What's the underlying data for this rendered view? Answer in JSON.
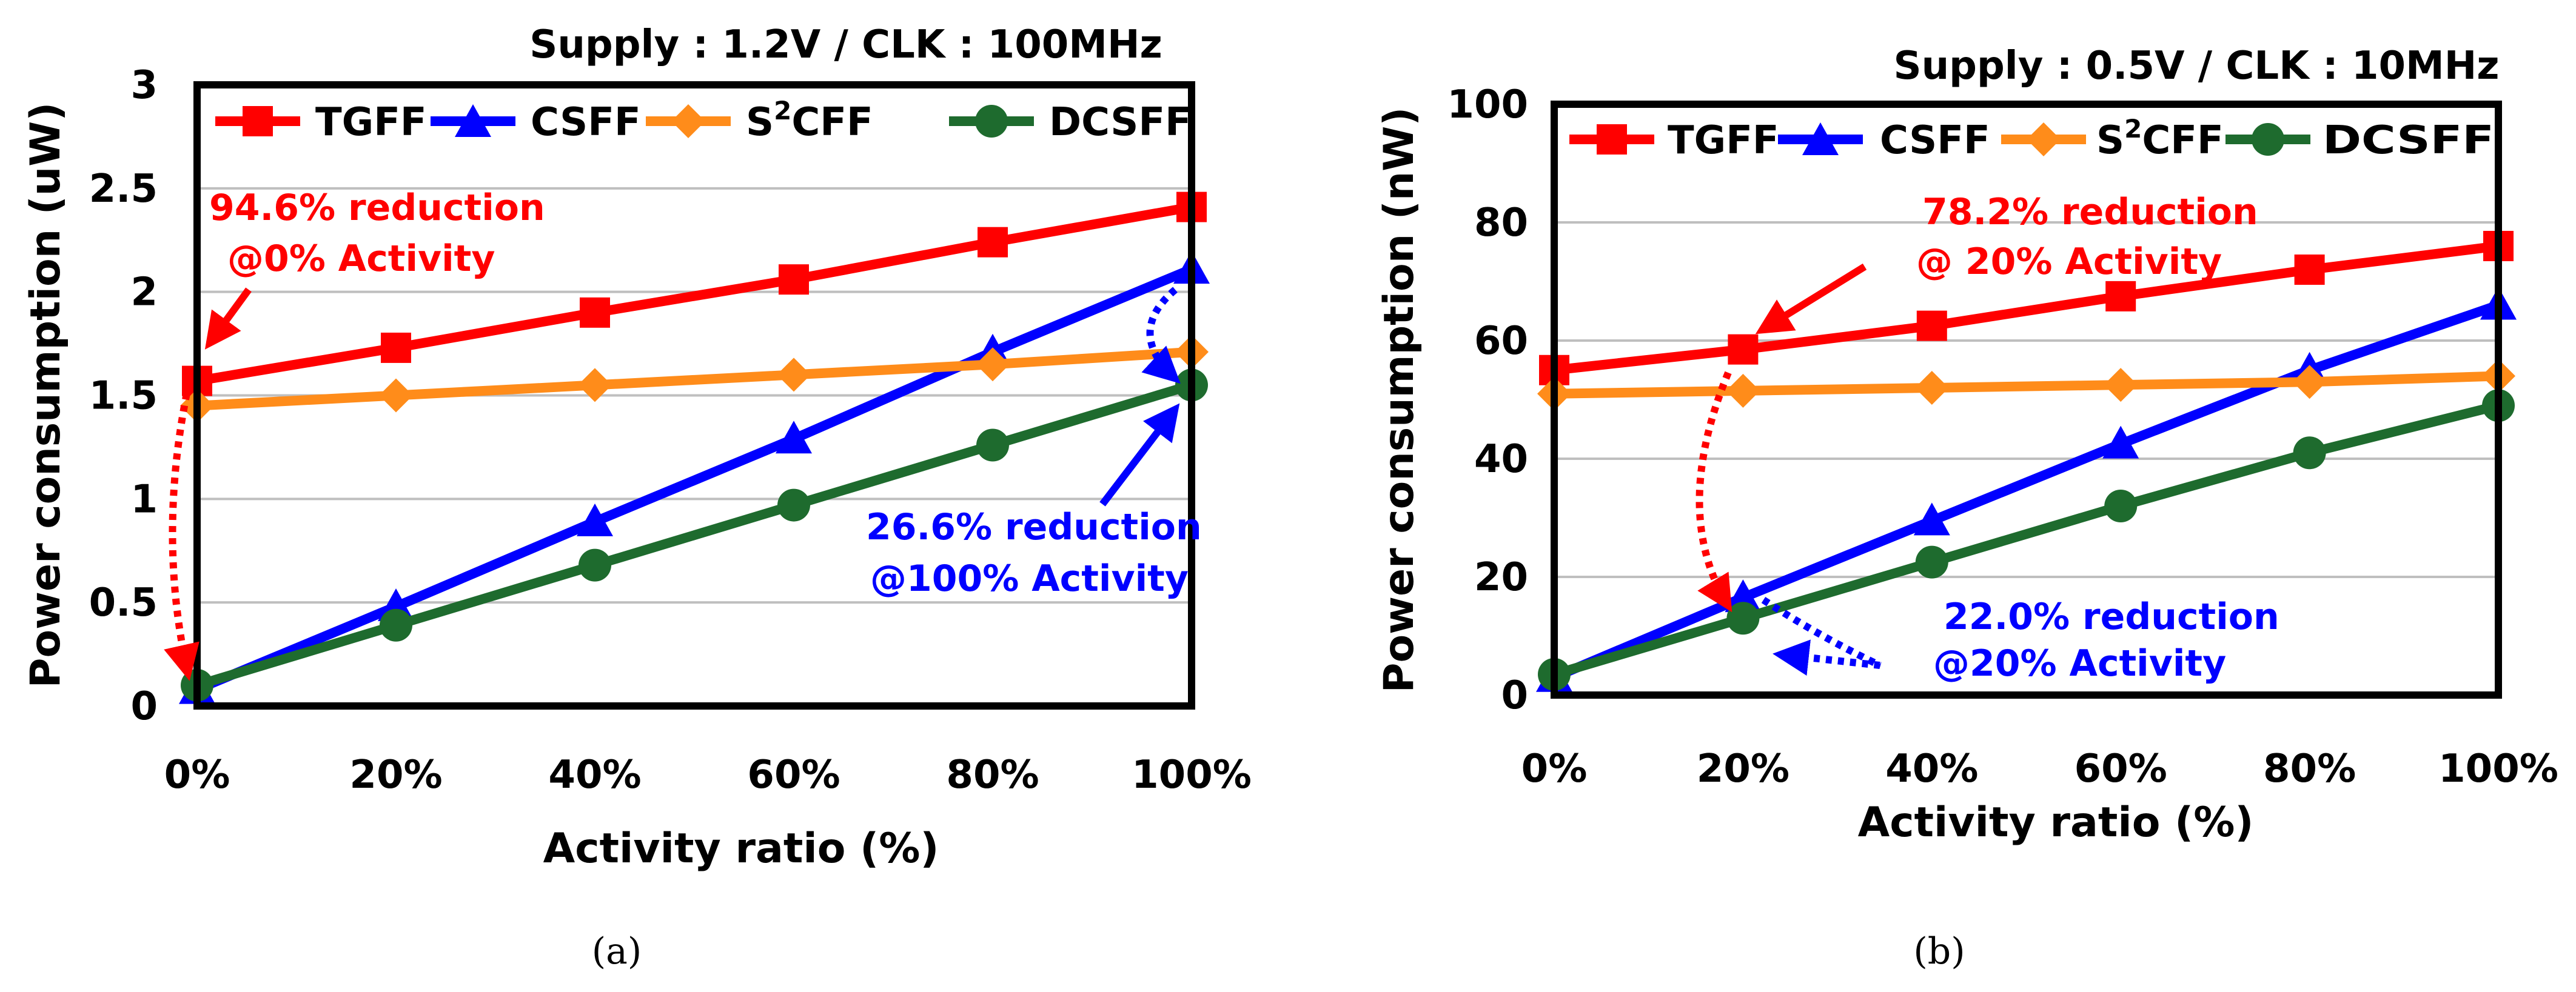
{
  "colors": {
    "TGFF": "#ff0000",
    "CSFF": "#0000ff",
    "S2CFF": "#ff8c1a",
    "DCSFF": "#1e6b2e",
    "grid": "#bfbfbf",
    "frame": "#000000"
  },
  "chart_data": [
    {
      "type": "line",
      "panel": "(a)",
      "title": "Supply : 1.2V / CLK : 100MHz",
      "xlabel": "Activity ratio (%)",
      "ylabel": "Power consumption (uW)",
      "categories": [
        "0%",
        "20%",
        "40%",
        "60%",
        "80%",
        "100%"
      ],
      "yticks": [
        "0",
        "0.5",
        "1",
        "1.5",
        "2",
        "2.5",
        "3"
      ],
      "ylim": [
        0,
        3
      ],
      "series": [
        {
          "name": "TGFF",
          "marker": "square",
          "values": [
            1.57,
            1.73,
            1.9,
            2.06,
            2.24,
            2.41
          ]
        },
        {
          "name": "CSFF",
          "marker": "triangle",
          "values": [
            0.08,
            0.48,
            0.89,
            1.29,
            1.71,
            2.11
          ]
        },
        {
          "name": "S2CFF",
          "marker": "diamond",
          "values": [
            1.45,
            1.5,
            1.55,
            1.6,
            1.65,
            1.71
          ]
        },
        {
          "name": "DCSFF",
          "marker": "circle",
          "values": [
            0.1,
            0.39,
            0.68,
            0.97,
            1.26,
            1.55
          ]
        }
      ],
      "annotations": [
        {
          "text": "94.6% reduction",
          "color": "#ff0000"
        },
        {
          "text": "@0% Activity",
          "color": "#ff0000"
        },
        {
          "text": "26.6% reduction",
          "color": "#0000ff"
        },
        {
          "text": "@100% Activity",
          "color": "#0000ff"
        }
      ]
    },
    {
      "type": "line",
      "panel": "(b)",
      "title": "Supply : 0.5V / CLK : 10MHz",
      "xlabel": "Activity ratio (%)",
      "ylabel": "Power consumption (nW)",
      "categories": [
        "0%",
        "20%",
        "40%",
        "60%",
        "80%",
        "100%"
      ],
      "yticks": [
        "0",
        "20",
        "40",
        "60",
        "80",
        "100"
      ],
      "ylim": [
        0,
        100
      ],
      "series": [
        {
          "name": "TGFF",
          "marker": "square",
          "values": [
            55,
            58.5,
            62.5,
            67.5,
            72,
            76
          ]
        },
        {
          "name": "CSFF",
          "marker": "triangle",
          "values": [
            3,
            16.5,
            29.5,
            42.5,
            55,
            66
          ]
        },
        {
          "name": "S2CFF",
          "marker": "diamond",
          "values": [
            51,
            51.5,
            52,
            52.5,
            53,
            54
          ]
        },
        {
          "name": "DCSFF",
          "marker": "circle",
          "values": [
            3.5,
            13,
            22.5,
            32,
            41,
            49
          ]
        }
      ],
      "annotations": [
        {
          "text": "78.2% reduction",
          "color": "#ff0000"
        },
        {
          "text": "@ 20% Activity",
          "color": "#ff0000"
        },
        {
          "text": "22.0% reduction",
          "color": "#0000ff"
        },
        {
          "text": "@20% Activity",
          "color": "#0000ff"
        }
      ]
    }
  ],
  "legend": {
    "TGFF": "TGFF",
    "CSFF": "CSFF",
    "S2CFF_S": "S",
    "S2CFF_sup": "2",
    "S2CFF_rest": "CFF",
    "DCSFF": "DCSFF"
  }
}
